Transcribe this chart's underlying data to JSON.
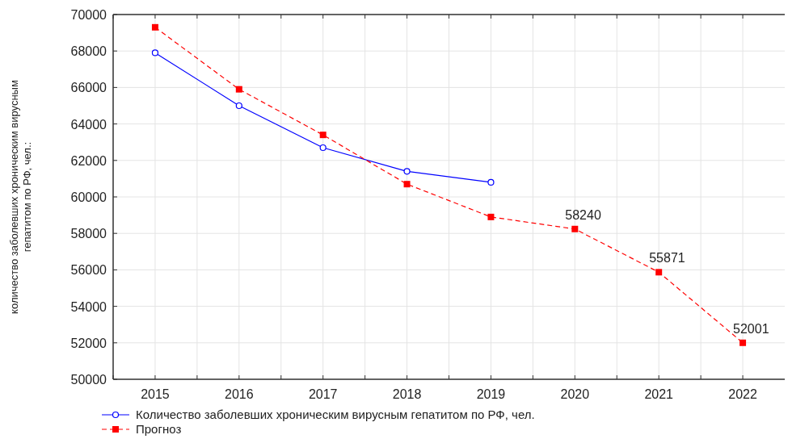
{
  "chart_data": {
    "type": "line",
    "ylabel": "количество заболевших хроническим вирусным гепатитом по РФ, чел.:",
    "xlim": [
      2014.5,
      2022.5
    ],
    "xticks": [
      {
        "value": 2014.5,
        "label": null
      },
      2015,
      {
        "value": 2015.5,
        "label": null
      },
      2016,
      {
        "value": 2016.5,
        "label": null
      },
      2017,
      {
        "value": 2017.5,
        "label": null
      },
      2018,
      {
        "value": 2018.5,
        "label": null
      },
      2019,
      {
        "value": 2019.5,
        "label": null
      },
      2020,
      {
        "value": 2020.5,
        "label": null
      },
      2021,
      {
        "value": 2021.5,
        "label": null
      },
      2022
    ],
    "ylim": [
      50000,
      70000
    ],
    "yticks": [
      50000,
      52000,
      54000,
      56000,
      58000,
      60000,
      62000,
      64000,
      66000,
      68000,
      70000
    ],
    "grid": true,
    "legend": "bottom left",
    "series": [
      {
        "name": "Количество заболевших хроническим вирусным гепатитом по РФ, чел.",
        "color": "#0000ff",
        "marker": "circle",
        "line_style": "solid",
        "x": [
          2015,
          2016,
          2017,
          2018,
          2019
        ],
        "values": [
          67900,
          65000,
          62700,
          61400,
          60800
        ]
      },
      {
        "name": "Прогноз",
        "color": "#ff0000",
        "marker": "square",
        "line_style": "dashed",
        "x": [
          2015,
          2016,
          2017,
          2018,
          2019,
          2020,
          2021,
          2022
        ],
        "values": [
          69300,
          65900,
          63400,
          60700,
          58900,
          58240,
          55871,
          52001
        ],
        "value_labels": [
          null,
          null,
          null,
          null,
          null,
          "58240",
          "55871",
          "52001"
        ]
      }
    ]
  }
}
